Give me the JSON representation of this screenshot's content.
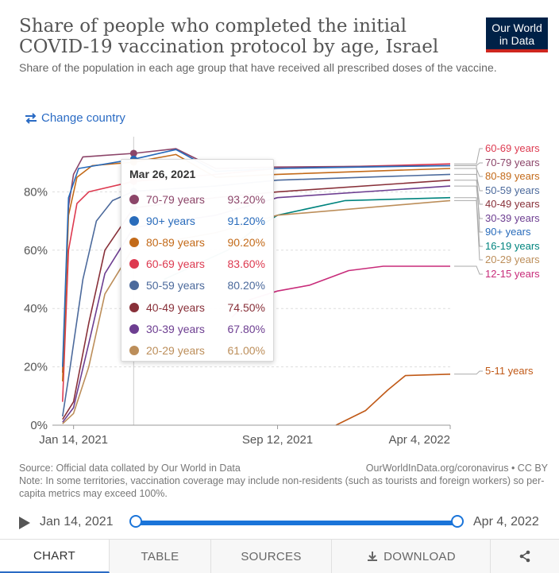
{
  "header": {
    "title": "Share of people who completed the initial COVID-19 vaccination protocol by age, Israel",
    "subtitle": "Share of the population in each age group that have received all prescribed doses of the vaccine.",
    "logo_line1": "Our World",
    "logo_line2": "in Data"
  },
  "controls": {
    "change_country": "Change country"
  },
  "colors": {
    "accent": "#2a6bc4",
    "logo_bg": "#002147",
    "logo_stripe": "#ce261e"
  },
  "chart_data": {
    "type": "line",
    "x_ticks": [
      "Jan 14, 2021",
      "Sep 12, 2021",
      "Apr 4, 2022"
    ],
    "y_ticks": [
      "0%",
      "20%",
      "40%",
      "60%",
      "80%"
    ],
    "ylim": [
      0,
      100
    ],
    "xlim": [
      "Dec 20, 2020",
      "Apr 4, 2022"
    ],
    "grid": "horizontal dashed",
    "legend": "right (end labels)",
    "hover_date": "Mar 26, 2021",
    "series": [
      {
        "name": "60-69 years",
        "color": "#dd3a50",
        "points": [
          [
            "2021-01-01",
            8
          ],
          [
            "2021-01-08",
            60
          ],
          [
            "2021-01-18",
            76
          ],
          [
            "2021-02-01",
            80
          ],
          [
            "2021-03-26",
            83.6
          ],
          [
            "2021-07-01",
            86
          ],
          [
            "2021-09-12",
            88
          ],
          [
            "2022-04-04",
            89.6
          ]
        ]
      },
      {
        "name": "70-79 years",
        "color": "#8c4569",
        "points": [
          [
            "2021-01-01",
            18
          ],
          [
            "2021-01-08",
            75
          ],
          [
            "2021-01-14",
            86
          ],
          [
            "2021-01-25",
            92
          ],
          [
            "2021-03-26",
            93.2
          ],
          [
            "2021-05-15",
            94.8
          ],
          [
            "2021-07-01",
            88
          ],
          [
            "2021-09-12",
            88.5
          ],
          [
            "2022-04-04",
            89
          ]
        ]
      },
      {
        "name": "80-89 years",
        "color": "#c36a19",
        "points": [
          [
            "2021-01-01",
            15
          ],
          [
            "2021-01-08",
            72
          ],
          [
            "2021-01-18",
            85
          ],
          [
            "2021-02-05",
            89
          ],
          [
            "2021-03-26",
            90.2
          ],
          [
            "2021-05-15",
            92.8
          ],
          [
            "2021-07-01",
            85
          ],
          [
            "2021-09-12",
            86
          ],
          [
            "2022-04-04",
            88
          ]
        ]
      },
      {
        "name": "50-59 years",
        "color": "#4c6a9c",
        "points": [
          [
            "2021-01-01",
            3
          ],
          [
            "2021-01-10",
            20
          ],
          [
            "2021-01-25",
            50
          ],
          [
            "2021-02-10",
            70
          ],
          [
            "2021-03-01",
            77
          ],
          [
            "2021-03-26",
            80.2
          ],
          [
            "2021-07-01",
            82
          ],
          [
            "2021-09-12",
            84
          ],
          [
            "2022-04-04",
            86
          ]
        ]
      },
      {
        "name": "40-49 years",
        "color": "#883039",
        "points": [
          [
            "2021-01-01",
            2
          ],
          [
            "2021-01-14",
            8
          ],
          [
            "2021-02-01",
            35
          ],
          [
            "2021-02-20",
            60
          ],
          [
            "2021-03-26",
            74.5
          ],
          [
            "2021-07-01",
            78
          ],
          [
            "2021-09-12",
            80
          ],
          [
            "2022-04-04",
            84
          ]
        ]
      },
      {
        "name": "30-39 years",
        "color": "#6d3e91",
        "points": [
          [
            "2021-01-01",
            1
          ],
          [
            "2021-01-14",
            6
          ],
          [
            "2021-02-01",
            28
          ],
          [
            "2021-02-20",
            52
          ],
          [
            "2021-03-26",
            67.8
          ],
          [
            "2021-07-01",
            72
          ],
          [
            "2021-09-12",
            78
          ],
          [
            "2022-04-04",
            82
          ]
        ]
      },
      {
        "name": "90+ years",
        "color": "#286bbb",
        "points": [
          [
            "2021-01-01",
            20
          ],
          [
            "2021-01-08",
            78
          ],
          [
            "2021-01-20",
            88
          ],
          [
            "2021-03-26",
            91.2
          ],
          [
            "2021-05-15",
            94.5
          ],
          [
            "2021-07-01",
            87
          ],
          [
            "2021-09-12",
            88
          ],
          [
            "2022-04-04",
            89
          ]
        ]
      },
      {
        "name": "16-19 years",
        "color": "#00847e",
        "points": [
          [
            "2021-05-01",
            50
          ],
          [
            "2021-07-15",
            60
          ],
          [
            "2021-08-15",
            67
          ],
          [
            "2021-09-12",
            72
          ],
          [
            "2021-12-01",
            77
          ],
          [
            "2022-04-04",
            78
          ]
        ]
      },
      {
        "name": "20-29 years",
        "color": "#bc8e5a",
        "points": [
          [
            "2021-01-01",
            0.5
          ],
          [
            "2021-01-14",
            4
          ],
          [
            "2021-02-01",
            20
          ],
          [
            "2021-02-20",
            45
          ],
          [
            "2021-03-26",
            61
          ],
          [
            "2021-07-01",
            66
          ],
          [
            "2021-09-12",
            72
          ],
          [
            "2022-04-04",
            77
          ]
        ]
      },
      {
        "name": "12-15 years",
        "color": "#c82c7a",
        "points": [
          [
            "2021-07-20",
            37
          ],
          [
            "2021-08-10",
            43
          ],
          [
            "2021-09-12",
            46
          ],
          [
            "2021-10-20",
            48
          ],
          [
            "2021-12-05",
            53
          ],
          [
            "2022-01-15",
            54.5
          ],
          [
            "2022-04-04",
            54.5
          ]
        ]
      },
      {
        "name": "5-11 years",
        "color": "#c05917",
        "points": [
          [
            "2021-11-20",
            0
          ],
          [
            "2021-12-25",
            5
          ],
          [
            "2022-01-20",
            12
          ],
          [
            "2022-02-10",
            17
          ],
          [
            "2022-04-04",
            17.5
          ]
        ]
      }
    ]
  },
  "tooltip": {
    "date": "Mar 26, 2021",
    "rows": [
      {
        "name": "70-79 years",
        "value": "93.20%",
        "color": "#8c4569"
      },
      {
        "name": "90+ years",
        "value": "91.20%",
        "color": "#286bbb"
      },
      {
        "name": "80-89 years",
        "value": "90.20%",
        "color": "#c36a19"
      },
      {
        "name": "60-69 years",
        "value": "83.60%",
        "color": "#dd3a50"
      },
      {
        "name": "50-59 years",
        "value": "80.20%",
        "color": "#4c6a9c"
      },
      {
        "name": "40-49 years",
        "value": "74.50%",
        "color": "#883039"
      },
      {
        "name": "30-39 years",
        "value": "67.80%",
        "color": "#6d3e91"
      },
      {
        "name": "20-29 years",
        "value": "61.00%",
        "color": "#bc8e5a"
      }
    ]
  },
  "source": {
    "left": "Source: Official data collated by Our World in Data",
    "right": "OurWorldInData.org/coronavirus • CC BY",
    "note": "Note: In some territories, vaccination coverage may include non-residents (such as tourists and foreign workers) so per-capita metrics may exceed 100%."
  },
  "timeline": {
    "start": "Jan 14, 2021",
    "end": "Apr 4, 2022"
  },
  "tabs": {
    "chart": "CHART",
    "table": "TABLE",
    "sources": "SOURCES",
    "download": "DOWNLOAD"
  }
}
